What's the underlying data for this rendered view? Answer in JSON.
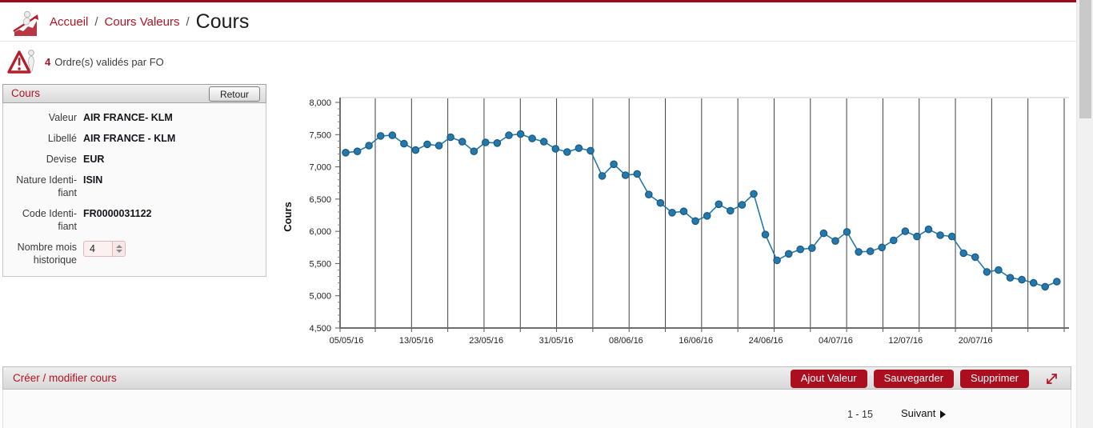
{
  "header": {
    "breadcrumb": {
      "home": "Accueil",
      "section": "Cours Valeurs"
    },
    "title": "Cours"
  },
  "alert": {
    "count": "4",
    "text": "Ordre(s) validés par FO"
  },
  "panel": {
    "title": "Cours",
    "back_button": "Retour",
    "fields": [
      {
        "label": "Valeur",
        "value": "AIR FRANCE- KLM"
      },
      {
        "label": "Libellé",
        "value": "AIR FRANCE - KLM"
      },
      {
        "label": "Devise",
        "value": "EUR"
      },
      {
        "label": "Nature Identi-\nfiant",
        "value": "ISIN"
      },
      {
        "label": "Code Identi-\nfiant",
        "value": "FR0000031122"
      }
    ],
    "months_field": {
      "label": "Nombre mois\nhistorique",
      "value": "4"
    }
  },
  "chart_data": {
    "type": "line",
    "ylabel": "Cours",
    "ylim": [
      4500,
      8000
    ],
    "ytick_step": 500,
    "yminor_step": 100,
    "ytick_labels": [
      "4,500",
      "5,000",
      "5,500",
      "6,000",
      "6,500",
      "7,000",
      "7,500",
      "8,000"
    ],
    "x_tick_labels": [
      "05/05/16",
      "13/05/16",
      "23/05/16",
      "31/05/16",
      "08/06/16",
      "16/06/16",
      "24/06/16",
      "04/07/16",
      "12/07/16",
      "20/07/16"
    ],
    "x_start_date": "05/05/16",
    "grid": "vertical",
    "n_vertical_gridlines": 20,
    "legend": false,
    "line_color": "#2478ab",
    "marker_edge_color": "#195a80",
    "values": [
      7220,
      7240,
      7330,
      7480,
      7490,
      7360,
      7260,
      7350,
      7330,
      7460,
      7390,
      7240,
      7380,
      7370,
      7490,
      7510,
      7440,
      7390,
      7280,
      7230,
      7290,
      7250,
      6860,
      7040,
      6870,
      6890,
      6570,
      6440,
      6290,
      6310,
      6160,
      6240,
      6420,
      6320,
      6410,
      6580,
      5950,
      5550,
      5650,
      5720,
      5740,
      5970,
      5850,
      5990,
      5680,
      5690,
      5750,
      5860,
      6000,
      5920,
      6030,
      5940,
      5920,
      5660,
      5600,
      5370,
      5400,
      5280,
      5250,
      5200,
      5140,
      5220
    ]
  },
  "bottom_bar": {
    "title": "Créer / modifier cours",
    "buttons": [
      "Ajout Valeur",
      "Sauvegarder",
      "Supprimer"
    ]
  },
  "pagination": {
    "range": "1 - 15",
    "next": "Suivant"
  },
  "colors": {
    "accent_red": "#b11423",
    "topbar_red": "#9d0c1c",
    "button_red": "#ab0e1f"
  }
}
